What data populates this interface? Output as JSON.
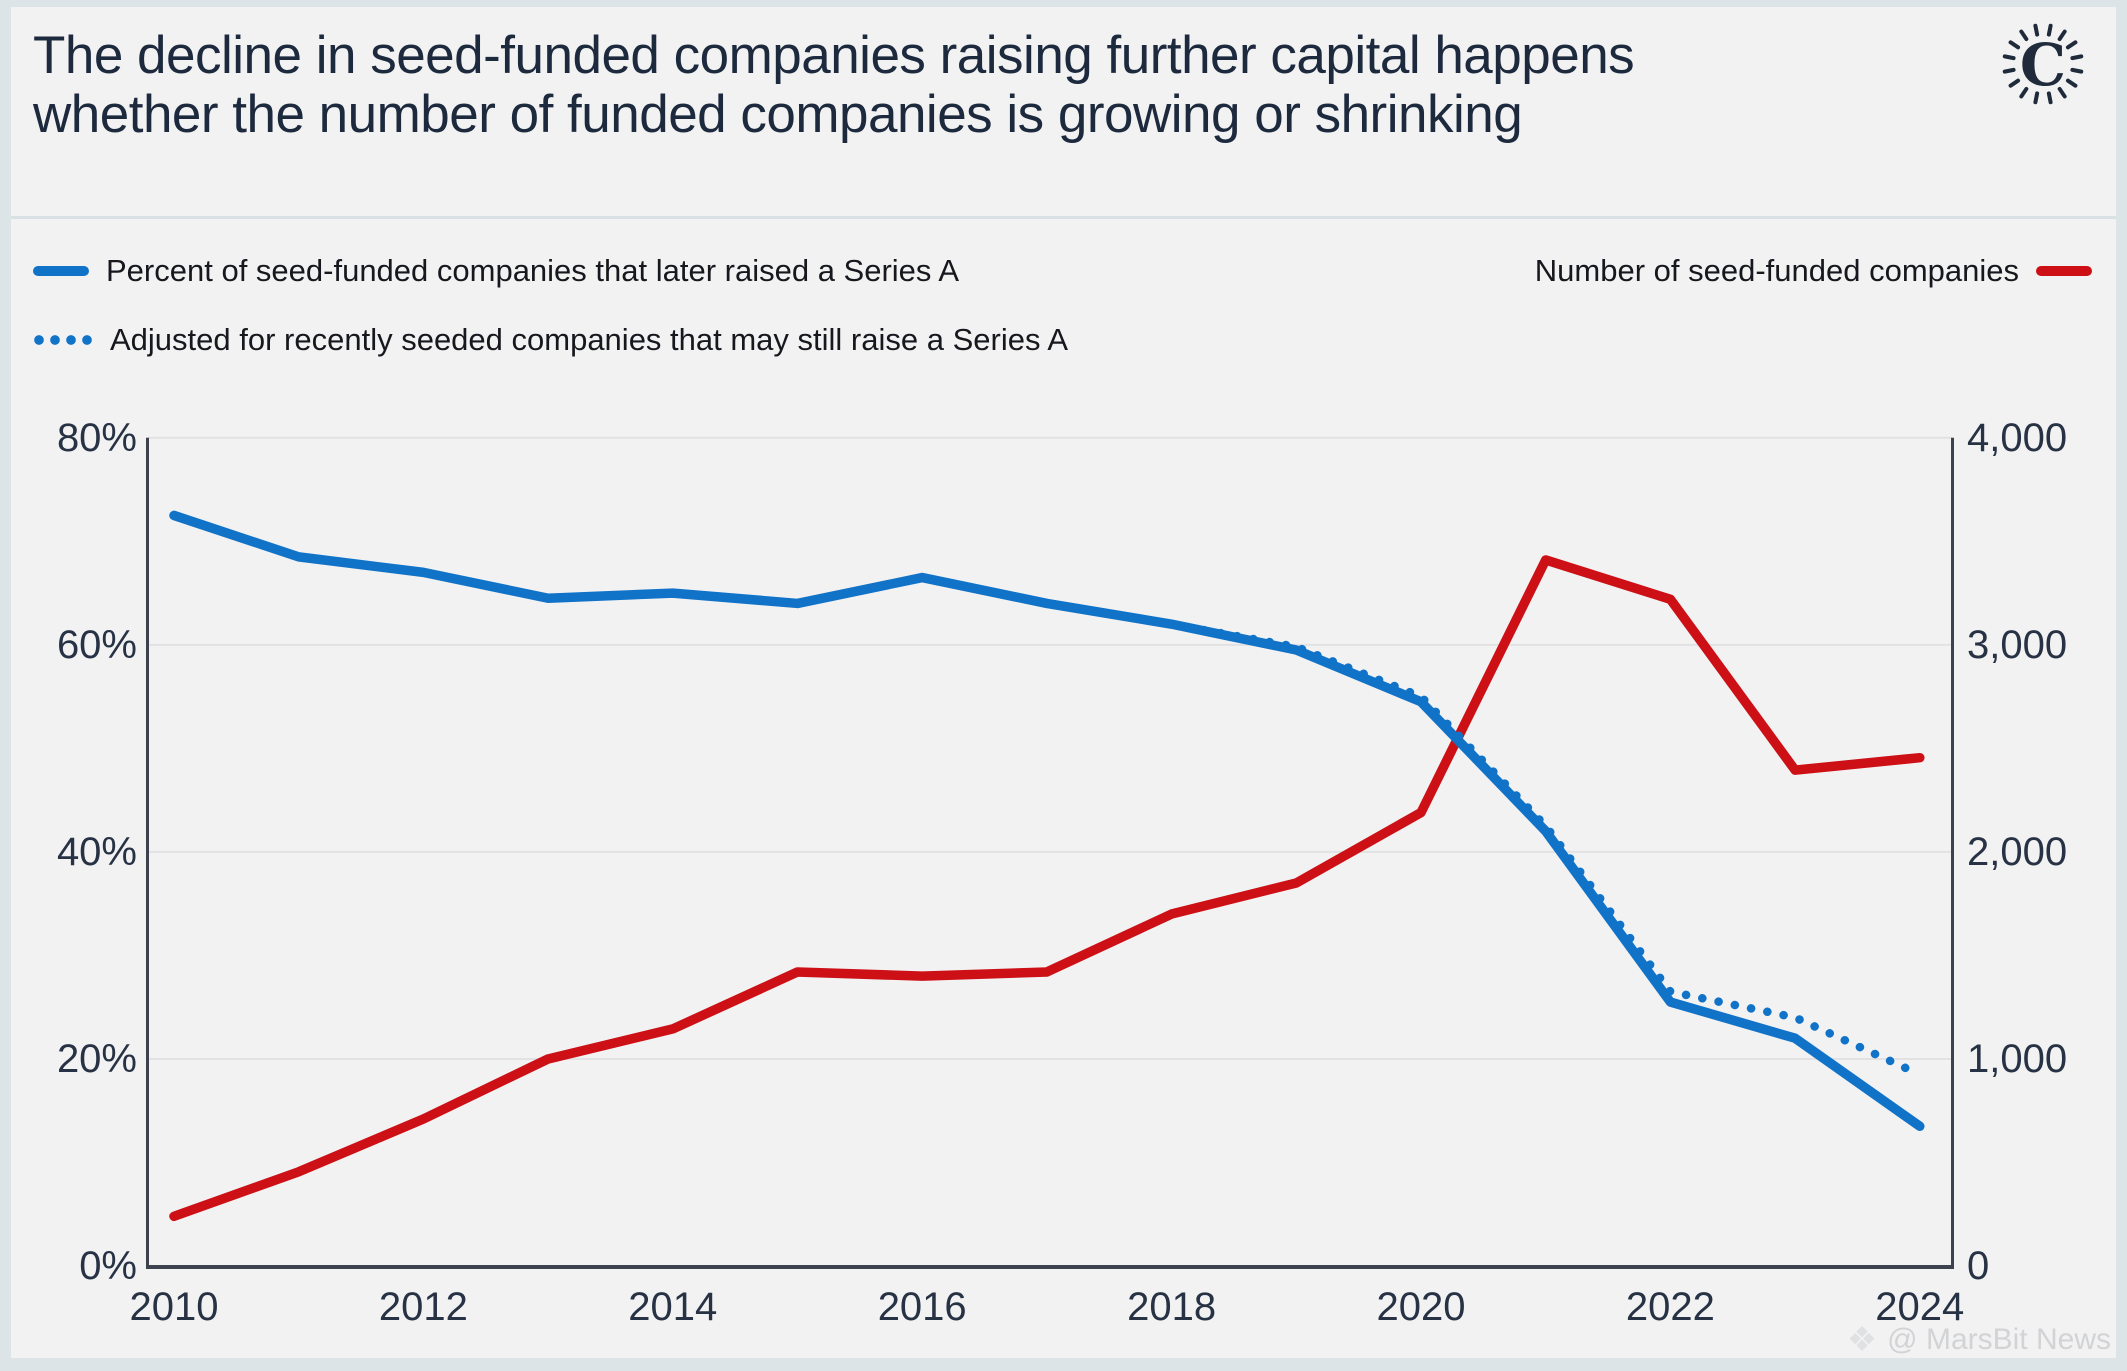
{
  "header": {
    "title_line1": "The decline in seed-funded companies raising further capital happens",
    "title_line2": "whether the number of funded companies is growing or shrinking",
    "logo_letter": "C"
  },
  "legend": {
    "pct_label": "Percent of seed-funded companies that later raised a Series A",
    "adjusted_label": "Adjusted for recently seeded companies that may still raise a Series A",
    "count_label": "Number of seed-funded companies"
  },
  "watermark": "@ MarsBit News",
  "colors": {
    "blue": "#1173c8",
    "red": "#cc1016",
    "navy": "#1d2a3e",
    "grid": "#e2e2e4",
    "axis": "#3c424e",
    "background": "#f2f2f3",
    "frame": "#dde4e8",
    "watermark": "#d2d3d5"
  },
  "chart_data": {
    "type": "line",
    "title": "The decline in seed-funded companies raising further capital happens whether the number of funded companies is growing or shrinking",
    "grid": true,
    "legend_position": "top",
    "x": [
      2010,
      2011,
      2012,
      2013,
      2014,
      2015,
      2016,
      2017,
      2018,
      2019,
      2020,
      2021,
      2022,
      2023,
      2024
    ],
    "series": [
      {
        "name": "Percent of seed-funded companies that later raised a Series A",
        "axis": "left",
        "style": "solid",
        "color_key": "blue",
        "x": [
          2010,
          2011,
          2012,
          2013,
          2014,
          2015,
          2016,
          2017,
          2018,
          2019,
          2020,
          2021,
          2022,
          2023,
          2024
        ],
        "values": [
          72.5,
          68.5,
          67,
          64.5,
          65,
          64,
          66.5,
          64,
          62,
          59.5,
          54.5,
          42,
          25.5,
          22,
          13.5
        ]
      },
      {
        "name": "Adjusted for recently seeded companies that may still raise a Series A",
        "axis": "left",
        "style": "dotted",
        "color_key": "blue",
        "x": [
          2018,
          2019,
          2020,
          2021,
          2022,
          2023,
          2024
        ],
        "values": [
          62,
          59.8,
          55,
          42.5,
          26.5,
          24,
          18.5
        ]
      },
      {
        "name": "Number of seed-funded companies",
        "axis": "right",
        "style": "solid",
        "color_key": "red",
        "x": [
          2010,
          2011,
          2012,
          2013,
          2014,
          2015,
          2016,
          2017,
          2018,
          2019,
          2020,
          2021,
          2022,
          2023,
          2024
        ],
        "values": [
          240,
          455,
          710,
          1000,
          1145,
          1420,
          1400,
          1420,
          1700,
          1850,
          2190,
          3410,
          3220,
          2395,
          2455
        ]
      }
    ],
    "left_axis": {
      "min": 0,
      "max": 80,
      "tick_values": [
        0,
        20,
        40,
        60,
        80
      ],
      "tick_labels": [
        "0%",
        "20%",
        "40%",
        "60%",
        "80%"
      ]
    },
    "right_axis": {
      "min": 0,
      "max": 4000,
      "tick_values": [
        0,
        1000,
        2000,
        3000,
        4000
      ],
      "tick_labels": [
        "0",
        "1,000",
        "2,000",
        "3,000",
        "4,000"
      ]
    },
    "x_axis": {
      "tick_values": [
        2010,
        2012,
        2014,
        2016,
        2018,
        2020,
        2022,
        2024
      ],
      "tick_labels": [
        "2010",
        "2012",
        "2014",
        "2016",
        "2018",
        "2020",
        "2022",
        "2024"
      ]
    }
  }
}
